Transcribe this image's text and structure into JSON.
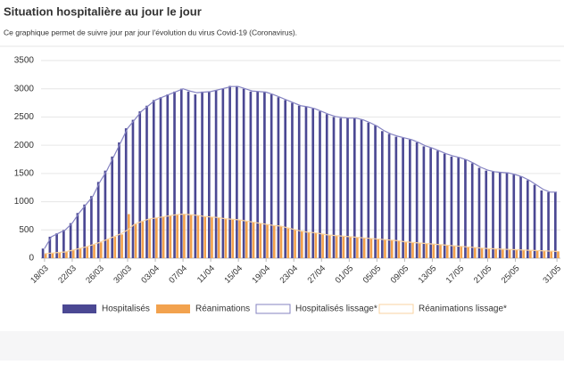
{
  "chart_data": {
    "type": "bar",
    "title": "Situation hospitalière au jour le jour",
    "subtitle": "Ce graphique permet de suivre jour par jour l'évolution du virus Covid-19 (Coronavirus).",
    "categories": [
      "18/03",
      null,
      null,
      null,
      "22/03",
      null,
      null,
      null,
      "26/03",
      null,
      null,
      null,
      "30/03",
      null,
      null,
      null,
      "03/04",
      null,
      null,
      null,
      "07/04",
      null,
      null,
      null,
      "11/04",
      null,
      null,
      null,
      "15/04",
      null,
      null,
      null,
      "19/04",
      null,
      null,
      null,
      "23/04",
      null,
      null,
      null,
      "27/04",
      null,
      null,
      null,
      "01/05",
      null,
      null,
      null,
      "05/05",
      null,
      null,
      null,
      "09/05",
      null,
      null,
      null,
      "13/05",
      null,
      null,
      null,
      "17/05",
      null,
      null,
      null,
      "21/05",
      null,
      null,
      null,
      "25/05",
      null,
      null,
      null,
      null,
      null,
      "31/05"
    ],
    "series": [
      {
        "name": "Hospitalisés",
        "type": "bar",
        "color": "#4b4893",
        "values": [
          170,
          380,
          440,
          500,
          620,
          800,
          950,
          1100,
          1350,
          1550,
          1800,
          2050,
          2300,
          2450,
          2600,
          2700,
          2800,
          2850,
          2900,
          2950,
          3000,
          2950,
          2900,
          2950,
          2950,
          2980,
          3000,
          3050,
          3050,
          3000,
          2950,
          2950,
          2950,
          2900,
          2850,
          2800,
          2750,
          2700,
          2680,
          2650,
          2600,
          2550,
          2500,
          2480,
          2480,
          2480,
          2450,
          2400,
          2350,
          2250,
          2200,
          2150,
          2130,
          2100,
          2050,
          1980,
          1950,
          1900,
          1850,
          1800,
          1780,
          1750,
          1680,
          1600,
          1550,
          1530,
          1520,
          1520,
          1480,
          1450,
          1380,
          1300,
          1200,
          1170,
          1170
        ]
      },
      {
        "name": "Réanimations",
        "type": "bar",
        "color": "#f2a24e",
        "values": [
          80,
          90,
          100,
          110,
          140,
          170,
          200,
          240,
          280,
          330,
          380,
          420,
          780,
          600,
          650,
          690,
          710,
          730,
          750,
          780,
          780,
          770,
          760,
          740,
          730,
          720,
          700,
          690,
          680,
          660,
          640,
          620,
          600,
          580,
          570,
          540,
          510,
          480,
          460,
          450,
          430,
          410,
          400,
          390,
          380,
          370,
          360,
          350,
          340,
          330,
          320,
          310,
          290,
          280,
          270,
          260,
          250,
          240,
          230,
          220,
          210,
          200,
          190,
          180,
          170,
          165,
          160,
          155,
          150,
          145,
          140,
          135,
          130,
          125,
          120
        ]
      },
      {
        "name": "Hospitalisés lissage*",
        "type": "line",
        "color": "#8583c2",
        "values": [
          170,
          380,
          440,
          500,
          620,
          800,
          950,
          1100,
          1350,
          1550,
          1800,
          2050,
          2300,
          2450,
          2600,
          2700,
          2800,
          2850,
          2900,
          2950,
          3000,
          2960,
          2930,
          2940,
          2950,
          2980,
          3010,
          3040,
          3040,
          3000,
          2960,
          2950,
          2940,
          2900,
          2850,
          2800,
          2750,
          2700,
          2680,
          2650,
          2600,
          2550,
          2510,
          2490,
          2480,
          2480,
          2450,
          2400,
          2340,
          2260,
          2200,
          2160,
          2130,
          2100,
          2050,
          1990,
          1950,
          1900,
          1850,
          1810,
          1780,
          1740,
          1680,
          1610,
          1560,
          1530,
          1520,
          1510,
          1480,
          1440,
          1380,
          1300,
          1220,
          1170,
          1170
        ]
      },
      {
        "name": "Réanimations lissage*",
        "type": "line",
        "color": "#f8d3a2",
        "values": [
          80,
          90,
          100,
          110,
          140,
          170,
          200,
          240,
          280,
          330,
          380,
          430,
          500,
          600,
          650,
          690,
          710,
          730,
          750,
          770,
          780,
          770,
          760,
          740,
          730,
          720,
          700,
          690,
          680,
          660,
          640,
          620,
          600,
          580,
          570,
          540,
          510,
          480,
          460,
          450,
          430,
          410,
          400,
          390,
          380,
          370,
          360,
          350,
          340,
          330,
          320,
          310,
          290,
          280,
          270,
          260,
          250,
          240,
          230,
          220,
          210,
          200,
          190,
          180,
          170,
          165,
          160,
          155,
          150,
          145,
          140,
          135,
          130,
          125,
          120
        ]
      }
    ],
    "ylim": [
      0,
      3500
    ],
    "yticks": [
      0,
      500,
      1000,
      1500,
      2000,
      2500,
      3000,
      3500
    ],
    "grid": true
  }
}
